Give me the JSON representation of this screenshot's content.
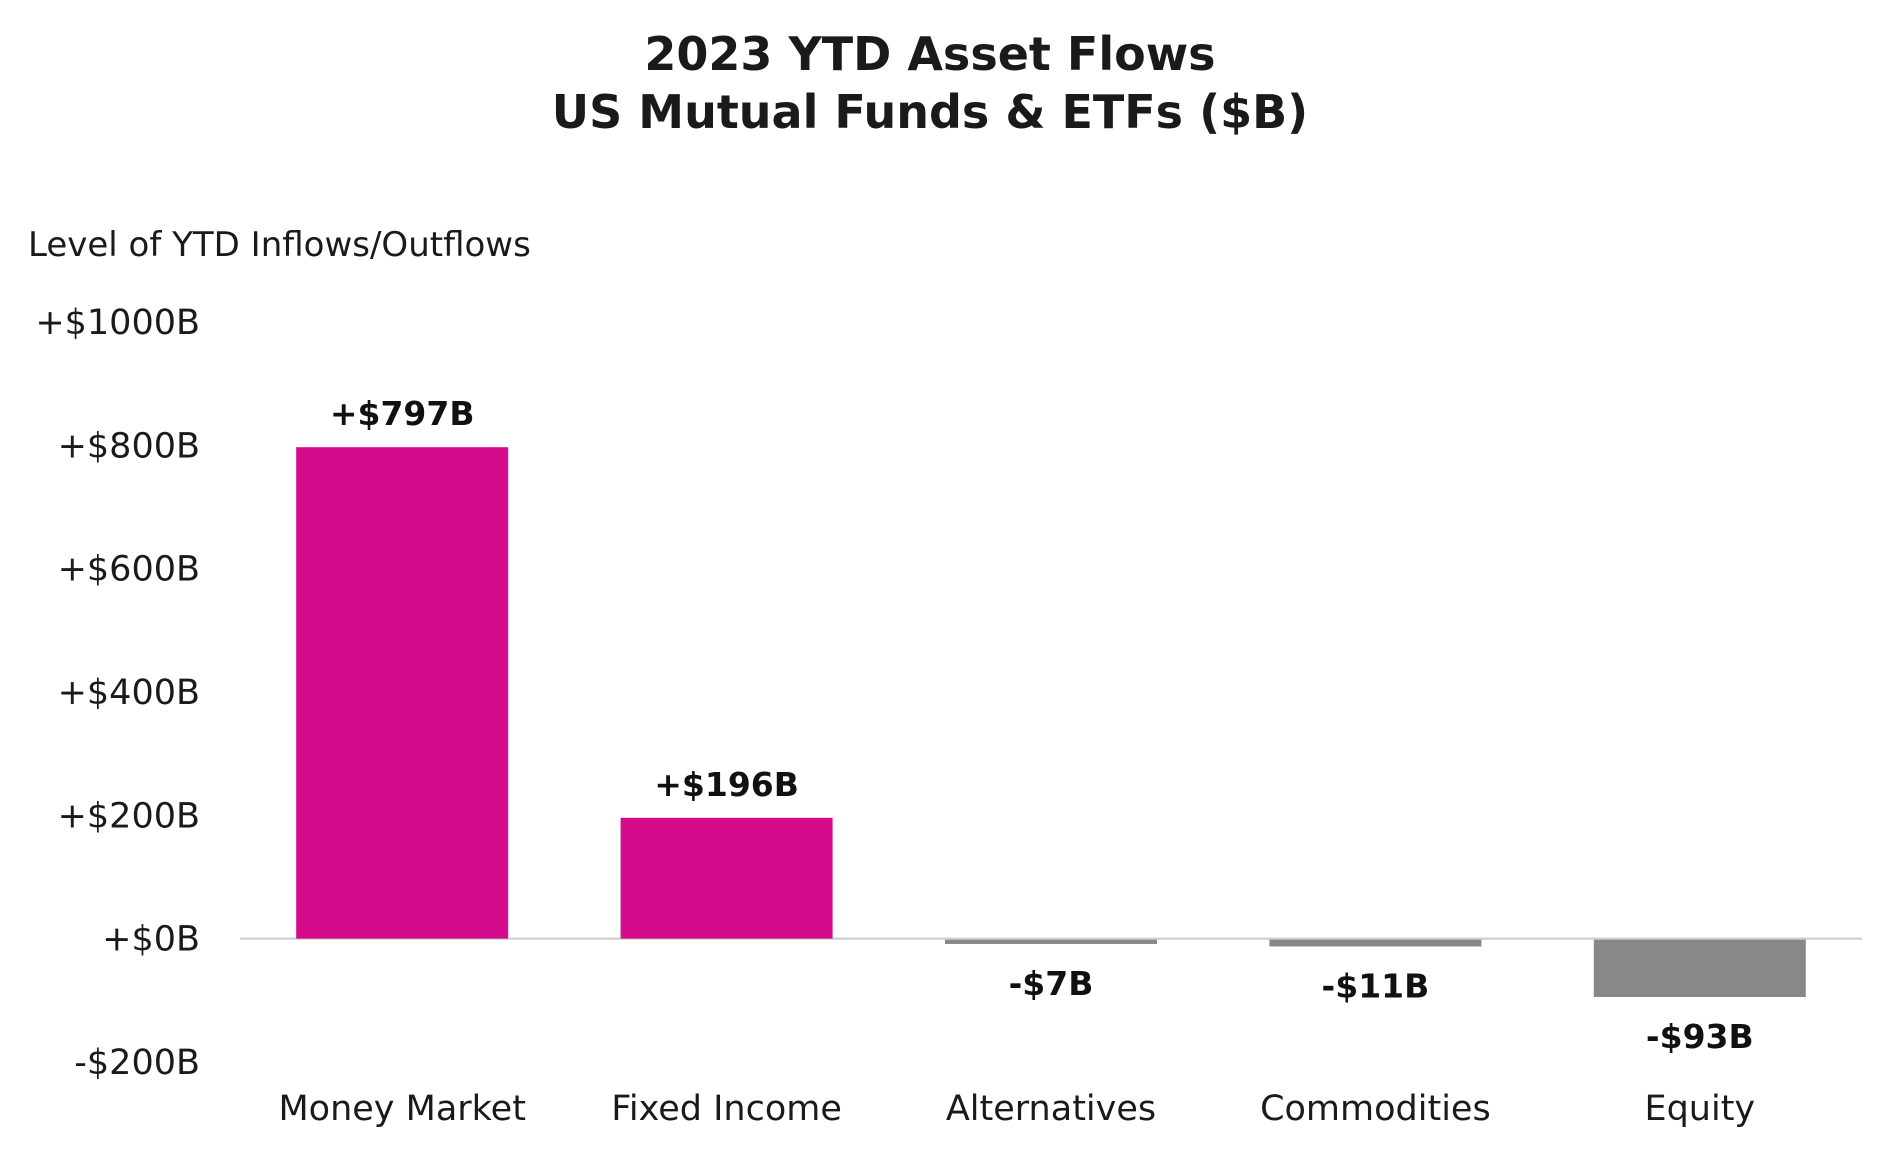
{
  "chart_data": {
    "type": "bar",
    "title": "2023 YTD Asset Flows",
    "subtitle": "US Mutual Funds & ETFs ($B)",
    "ylabel": "Level of YTD Inflows/Outflows",
    "xlabel": "",
    "ylim": [
      -200,
      1000
    ],
    "yticks": [
      1000,
      800,
      600,
      400,
      200,
      0,
      -200
    ],
    "ytick_labels": [
      "+$1000B",
      "+$800B",
      "+$600B",
      "+$400B",
      "+$200B",
      "+$0B",
      "-$200B"
    ],
    "categories": [
      "Money Market",
      "Fixed Income",
      "Alternatives",
      "Commodities",
      "Equity"
    ],
    "values": [
      797,
      196,
      -7,
      -11,
      -93
    ],
    "data_labels": [
      "+$797B",
      "+$196B",
      "-$7B",
      "-$11B",
      "-$93B"
    ],
    "grid": false,
    "legend": "none",
    "colors": {
      "positive": "#d60b8c",
      "negative": "#888888",
      "zero_line": "#cccccc",
      "text": "#1a1a1a"
    }
  }
}
